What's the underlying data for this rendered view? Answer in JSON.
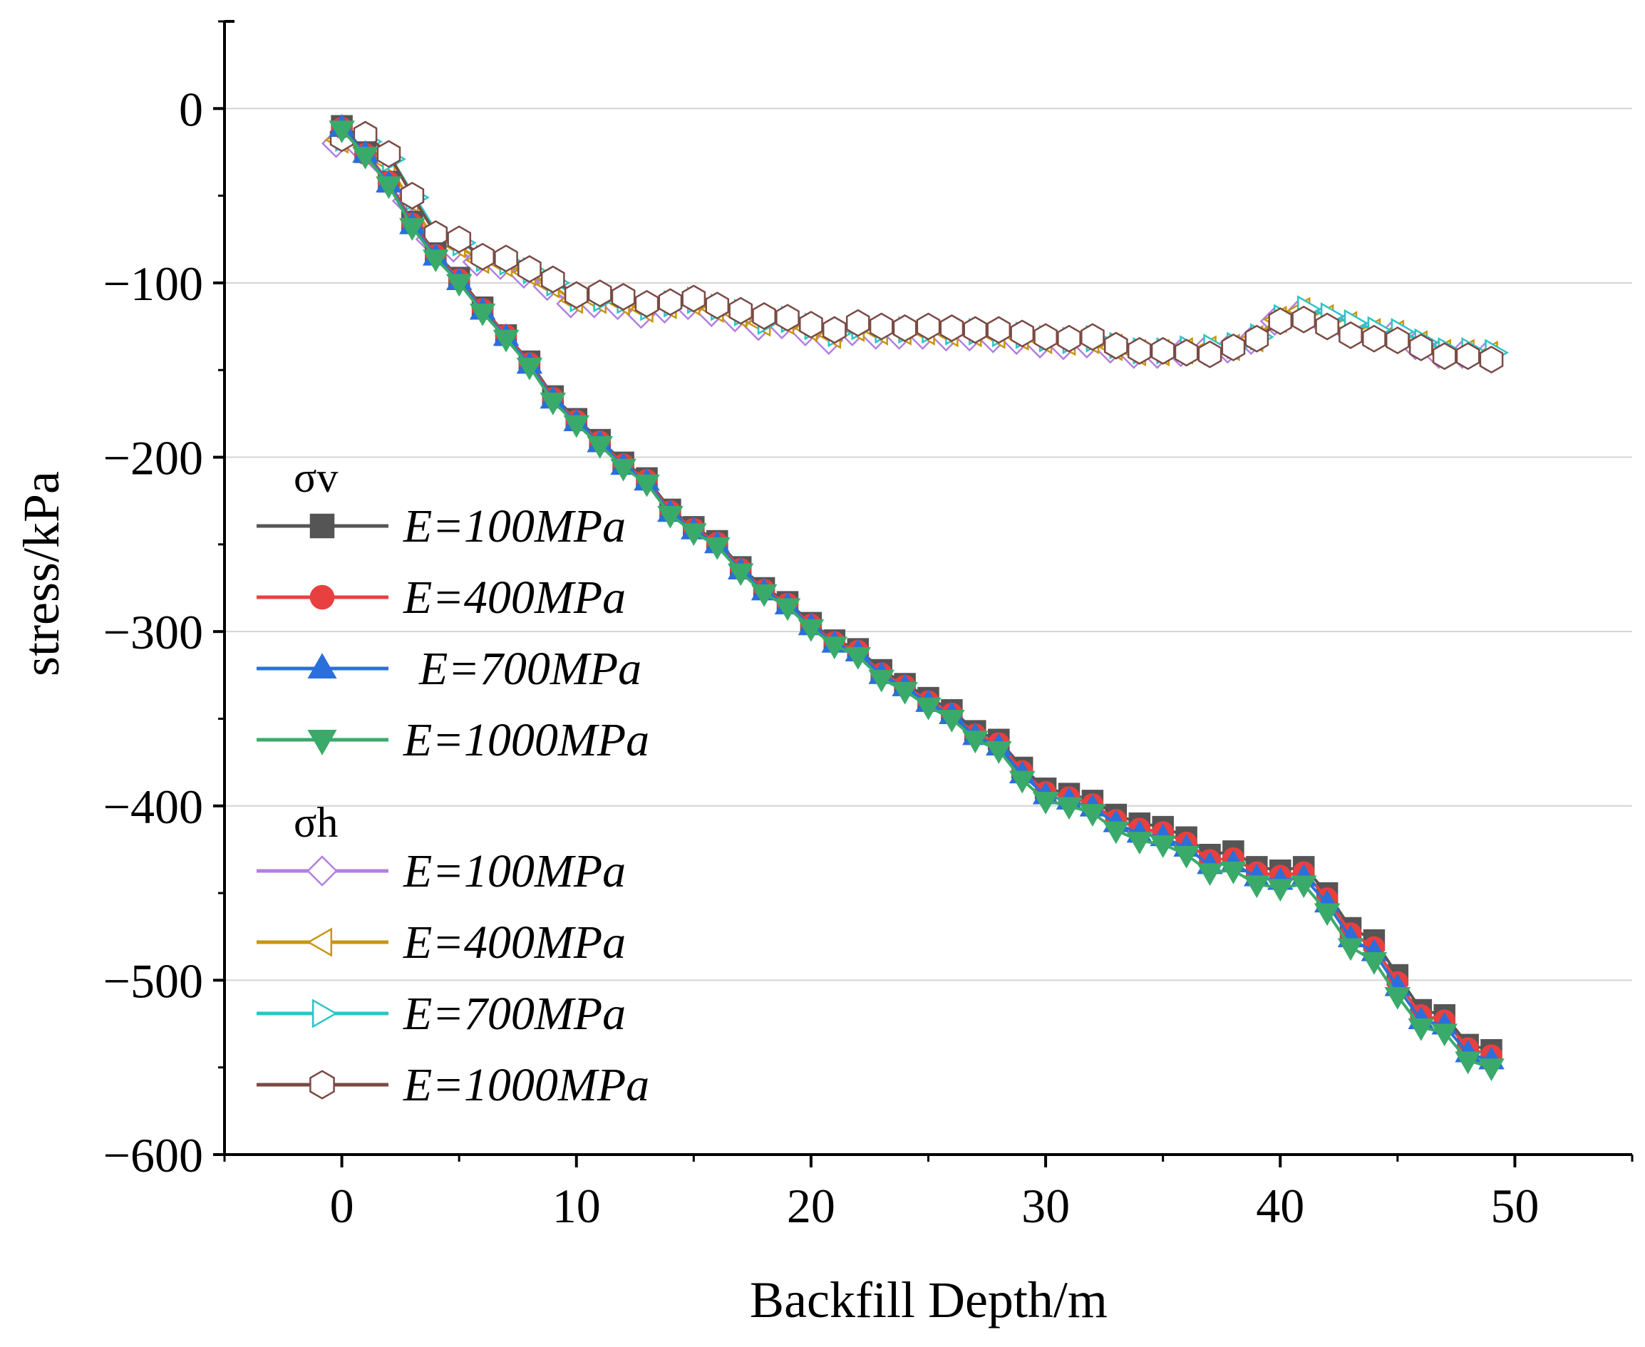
{
  "chart_data": {
    "type": "line",
    "title": "",
    "xlabel": "Backfill Depth/m",
    "ylabel": "stress/kPa",
    "xlim": [
      -5,
      55
    ],
    "ylim": [
      -600,
      50
    ],
    "xticks": [
      0,
      10,
      20,
      30,
      40,
      50
    ],
    "yticks": [
      0,
      -100,
      -200,
      -300,
      -400,
      -500,
      -600
    ],
    "xtick_labels": [
      "0",
      "10",
      "20",
      "30",
      "40",
      "50"
    ],
    "ytick_labels": [
      "0",
      "−100",
      "−200",
      "−300",
      "−400",
      "−500",
      "−600"
    ],
    "grid": true,
    "legend_position": "left",
    "legend_groups": [
      {
        "title": "σv",
        "entries": [
          "E=100MPa",
          "E=400MPa",
          "E=700MPa",
          "E=1000MPa"
        ]
      },
      {
        "title": "σh",
        "entries": [
          "E=100MPa",
          "E=400MPa",
          "E=700MPa",
          "E=1000MPa"
        ]
      }
    ],
    "x": [
      0,
      1,
      2,
      3,
      4,
      5,
      6,
      7,
      8,
      9,
      10,
      11,
      12,
      13,
      14,
      15,
      16,
      17,
      18,
      19,
      20,
      21,
      22,
      23,
      24,
      25,
      26,
      27,
      28,
      29,
      30,
      31,
      32,
      33,
      34,
      35,
      36,
      37,
      38,
      39,
      40,
      41,
      42,
      43,
      44,
      45,
      46,
      47,
      48,
      49
    ],
    "series": [
      {
        "group": "σv",
        "name": "E=100MPa",
        "color": "#555555",
        "marker": "square",
        "filled": true,
        "offset": 0,
        "values": [
          -10,
          -25,
          -42,
          -65,
          -83,
          -97,
          -114,
          -130,
          -145,
          -165,
          -178,
          -190,
          -203,
          -212,
          -230,
          -240,
          -248,
          -263,
          -275,
          -283,
          -295,
          -305,
          -310,
          -322,
          -330,
          -338,
          -345,
          -357,
          -362,
          -378,
          -390,
          -393,
          -397,
          -405,
          -410,
          -412,
          -418,
          -428,
          -426,
          -435,
          -437,
          -435,
          -450,
          -470,
          -477,
          -497,
          -517,
          -520,
          -537,
          -540
        ]
      },
      {
        "group": "σv",
        "name": "E=400MPa",
        "color": "#e84040",
        "marker": "circle",
        "filled": true,
        "offset": 0,
        "values": [
          -11,
          -26,
          -42,
          -66,
          -84,
          -98,
          -115,
          -130,
          -146,
          -166,
          -179,
          -191,
          -204,
          -213,
          -231,
          -241,
          -249,
          -264,
          -276,
          -284,
          -296,
          -306,
          -311,
          -324,
          -331,
          -340,
          -347,
          -359,
          -364,
          -380,
          -392,
          -395,
          -399,
          -408,
          -413,
          -415,
          -421,
          -431,
          -430,
          -438,
          -440,
          -438,
          -453,
          -473,
          -481,
          -501,
          -520,
          -523,
          -539,
          -543
        ]
      },
      {
        "group": "σv",
        "name": "E=700MPa",
        "color": "#2a6fdb",
        "marker": "triangle-up",
        "filled": true,
        "offset": 0,
        "values": [
          -11,
          -26,
          -43,
          -67,
          -85,
          -99,
          -116,
          -131,
          -147,
          -167,
          -180,
          -192,
          -205,
          -214,
          -232,
          -242,
          -250,
          -265,
          -277,
          -285,
          -297,
          -307,
          -312,
          -325,
          -332,
          -341,
          -348,
          -360,
          -366,
          -382,
          -394,
          -397,
          -401,
          -410,
          -416,
          -418,
          -424,
          -434,
          -433,
          -441,
          -443,
          -441,
          -456,
          -476,
          -484,
          -504,
          -523,
          -526,
          -542,
          -546
        ]
      },
      {
        "group": "σv",
        "name": "E=1000MPa",
        "color": "#3aaa6a",
        "marker": "triangle-down",
        "filled": true,
        "offset": 0,
        "values": [
          -12,
          -27,
          -44,
          -68,
          -86,
          -100,
          -117,
          -132,
          -148,
          -168,
          -181,
          -193,
          -206,
          -215,
          -233,
          -243,
          -251,
          -266,
          -278,
          -286,
          -298,
          -308,
          -314,
          -327,
          -334,
          -343,
          -350,
          -362,
          -368,
          -385,
          -397,
          -400,
          -404,
          -414,
          -420,
          -422,
          -428,
          -438,
          -437,
          -445,
          -447,
          -445,
          -461,
          -481,
          -489,
          -509,
          -527,
          -530,
          -546,
          -550
        ]
      },
      {
        "group": "σh",
        "name": "E=100MPa",
        "color": "#b37fe0",
        "marker": "diamond",
        "filled": false,
        "offset": -8,
        "values": [
          -20,
          -22,
          -32,
          -53,
          -75,
          -80,
          -88,
          -90,
          -95,
          -102,
          -112,
          -112,
          -113,
          -118,
          -115,
          -113,
          -117,
          -120,
          -125,
          -124,
          -128,
          -133,
          -128,
          -130,
          -130,
          -130,
          -131,
          -131,
          -132,
          -133,
          -135,
          -136,
          -135,
          -138,
          -141,
          -141,
          -140,
          -139,
          -138,
          -133,
          -122,
          -118,
          -122,
          -126,
          -130,
          -130,
          -136,
          -141,
          -141,
          -142
        ]
      },
      {
        "group": "σh",
        "name": "E=400MPa",
        "color": "#c8960c",
        "marker": "triangle-left",
        "filled": false,
        "offset": -4,
        "values": [
          -18,
          -20,
          -30,
          -52,
          -74,
          -78,
          -87,
          -89,
          -94,
          -101,
          -110,
          -110,
          -111,
          -115,
          -113,
          -111,
          -115,
          -118,
          -123,
          -122,
          -126,
          -130,
          -126,
          -128,
          -128,
          -128,
          -129,
          -129,
          -130,
          -131,
          -133,
          -134,
          -133,
          -137,
          -140,
          -140,
          -139,
          -138,
          -137,
          -132,
          -121,
          -116,
          -120,
          -124,
          -128,
          -129,
          -135,
          -140,
          -140,
          -141
        ]
      },
      {
        "group": "σh",
        "name": "E=700MPa",
        "color": "#2ec4c4",
        "marker": "triangle-right",
        "filled": false,
        "offset": 4,
        "values": [
          -17,
          -19,
          -29,
          -51,
          -73,
          -77,
          -86,
          -88,
          -93,
          -100,
          -109,
          -109,
          -110,
          -114,
          -112,
          -110,
          -114,
          -117,
          -122,
          -121,
          -125,
          -129,
          -125,
          -127,
          -127,
          -127,
          -128,
          -128,
          -129,
          -130,
          -132,
          -133,
          -132,
          -136,
          -139,
          -139,
          -138,
          -137,
          -136,
          -131,
          -120,
          -115,
          -119,
          -123,
          -127,
          -128,
          -134,
          -139,
          -139,
          -140
        ]
      },
      {
        "group": "σh",
        "name": "E=1000MPa",
        "color": "#7a4a44",
        "marker": "hexagon",
        "filled": false,
        "offset": 0,
        "values": [
          -17,
          -15,
          -26,
          -50,
          -72,
          -75,
          -85,
          -86,
          -92,
          -98,
          -107,
          -106,
          -108,
          -112,
          -111,
          -109,
          -113,
          -116,
          -119,
          -120,
          -124,
          -127,
          -123,
          -125,
          -126,
          -125,
          -126,
          -127,
          -127,
          -129,
          -131,
          -132,
          -131,
          -136,
          -139,
          -139,
          -140,
          -141,
          -137,
          -132,
          -122,
          -121,
          -125,
          -130,
          -132,
          -133,
          -137,
          -142,
          -142,
          -144
        ]
      }
    ]
  }
}
